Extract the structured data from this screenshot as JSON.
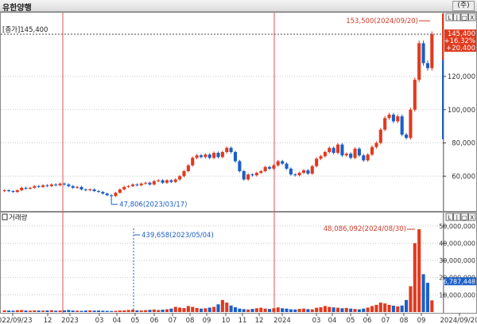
{
  "window": {
    "title": "유한양행",
    "corner_button": "(주)"
  },
  "price_panel": {
    "name_label": "[종가]145,400",
    "max_annotation": "153,500(2024/09/20)",
    "min_annotation": "47,806(2023/03/17)",
    "current_price": "145,400",
    "change_rate": "+16.32%",
    "change_amount": "+20,400",
    "y_ticks": [
      "120,000",
      "100,000",
      "80,000",
      "60,000"
    ],
    "controls": [
      "L",
      "|",
      "□",
      "X"
    ]
  },
  "volume_panel": {
    "name_label": "거래량",
    "max_annotation": "48,086,092(2024/08/30)",
    "min_annotation": "439,658(2023/05/04)",
    "current_volume": "6,787,448",
    "y_ticks": [
      "50,000,000",
      "40,000,000",
      "30,000,000",
      "20,000,000",
      "10,000,000"
    ],
    "controls": [
      "L",
      "|",
      "□",
      "X"
    ]
  },
  "x_axis": {
    "labels": [
      "2022/09/23",
      "12",
      "2023",
      "03",
      "04",
      "05",
      "06",
      "07",
      "08",
      "09",
      "10",
      "11",
      "12",
      "2024",
      "03",
      "04",
      "05",
      "06",
      "07",
      "08",
      "09",
      "2024/09/20"
    ]
  },
  "colors": {
    "up": "#e03a1e",
    "down": "#1a5fc8",
    "year_line": "#e05050",
    "grid": "#c8c8c8",
    "annotation_red": "#d23c28",
    "annotation_blue": "#1a5fc8"
  },
  "chart_data": {
    "type": "candlestick",
    "price_range_shown": [
      40000,
      160000
    ],
    "volume_range_shown": [
      0,
      55000000
    ],
    "last_close": 145400,
    "price_max": {
      "value": 153500,
      "date": "2024/09/20"
    },
    "price_min": {
      "value": 47806,
      "date": "2023/03/17"
    },
    "volume_max": {
      "value": 48086092,
      "date": "2024/08/30"
    },
    "volume_min": {
      "value": 439658,
      "date": "2023/05/04"
    },
    "weekly_close_estimate": [
      51500,
      51000,
      50500,
      51500,
      53000,
      52500,
      53000,
      54000,
      53500,
      54500,
      54000,
      55000,
      54500,
      55500,
      55000,
      54000,
      53000,
      53500,
      52000,
      51500,
      52000,
      51000,
      50500,
      49500,
      48500,
      48000,
      50000,
      52000,
      53500,
      54000,
      55000,
      54500,
      55500,
      56000,
      55000,
      57000,
      57500,
      56000,
      57500,
      56500,
      58000,
      60000,
      63000,
      66500,
      71000,
      72500,
      71500,
      73000,
      71000,
      74000,
      71500,
      74500,
      77000,
      74500,
      69000,
      63000,
      58000,
      61000,
      60500,
      62000,
      63000,
      65500,
      64500,
      66500,
      69000,
      67500,
      64500,
      61000,
      60500,
      62000,
      63500,
      61500,
      66000,
      70500,
      72000,
      74500,
      77000,
      74000,
      79000,
      72500,
      73500,
      71000,
      76500,
      72500,
      69500,
      73000,
      77500,
      80000,
      88000,
      95000,
      97000,
      93000,
      96000,
      85000,
      83000,
      100000,
      118000,
      140000,
      128000,
      125000,
      145400
    ],
    "weekly_volume_estimate": [
      1000000,
      900000,
      800000,
      1100000,
      1200000,
      900000,
      800000,
      1000000,
      900000,
      850000,
      950000,
      1100000,
      800000,
      900000,
      1000000,
      1200000,
      900000,
      800000,
      700000,
      900000,
      1000000,
      850000,
      900000,
      800000,
      700000,
      600000,
      700000,
      900000,
      1000000,
      1200000,
      1400000,
      1000000,
      900000,
      1100000,
      1300000,
      1500000,
      1200000,
      1400000,
      1600000,
      2000000,
      3000000,
      2600000,
      2300000,
      3500000,
      3000000,
      2400000,
      2000000,
      2200000,
      2600000,
      3000000,
      4500000,
      7000000,
      5500000,
      3800000,
      2800000,
      2000000,
      1700000,
      1500000,
      1800000,
      2200000,
      2500000,
      2000000,
      1800000,
      2200000,
      2700000,
      2200000,
      2000000,
      1600000,
      1500000,
      1800000,
      2000000,
      1700000,
      1600000,
      2500000,
      2800000,
      3500000,
      3000000,
      2700000,
      2500000,
      2200000,
      2400000,
      2000000,
      1800000,
      1600000,
      2000000,
      2600000,
      3500000,
      4200000,
      5500000,
      5000000,
      4200000,
      3700000,
      3300000,
      3800000,
      7000000,
      15000000,
      40000000,
      48086092,
      22000000,
      17000000,
      6787448
    ]
  }
}
